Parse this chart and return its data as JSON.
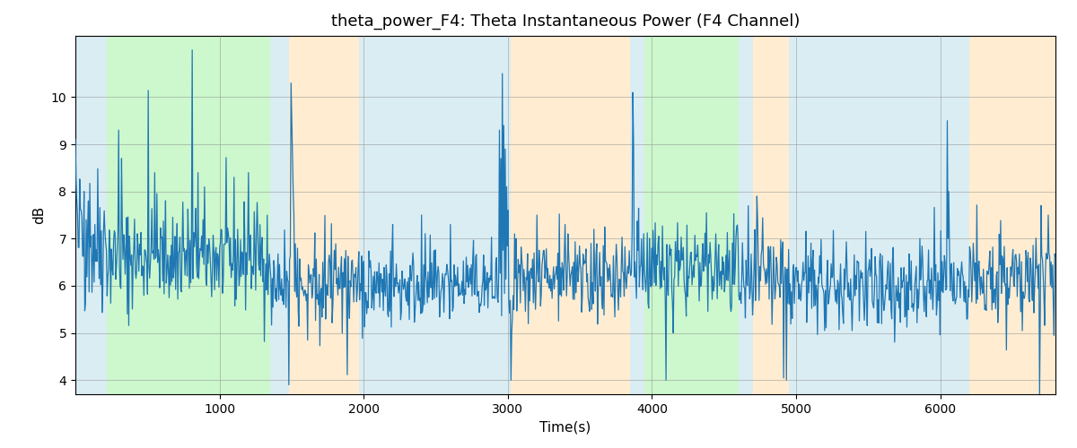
{
  "title": "theta_power_F4: Theta Instantaneous Power (F4 Channel)",
  "xlabel": "Time(s)",
  "ylabel": "dB",
  "ylim": [
    3.7,
    11.3
  ],
  "xlim": [
    0,
    6800
  ],
  "yticks": [
    4,
    5,
    6,
    7,
    8,
    9,
    10
  ],
  "xticks": [
    1000,
    2000,
    3000,
    4000,
    5000,
    6000
  ],
  "background_regions": [
    {
      "xmin": 0,
      "xmax": 220,
      "color": "#add8e6",
      "alpha": 0.45
    },
    {
      "xmin": 220,
      "xmax": 600,
      "color": "#90ee90",
      "alpha": 0.45
    },
    {
      "xmin": 600,
      "xmax": 1350,
      "color": "#90ee90",
      "alpha": 0.45
    },
    {
      "xmin": 1350,
      "xmax": 1480,
      "color": "#add8e6",
      "alpha": 0.45
    },
    {
      "xmin": 1480,
      "xmax": 1970,
      "color": "#ffd59a",
      "alpha": 0.45
    },
    {
      "xmin": 1970,
      "xmax": 3020,
      "color": "#add8e6",
      "alpha": 0.45
    },
    {
      "xmin": 3020,
      "xmax": 3850,
      "color": "#ffd59a",
      "alpha": 0.45
    },
    {
      "xmin": 3850,
      "xmax": 3950,
      "color": "#add8e6",
      "alpha": 0.45
    },
    {
      "xmin": 3950,
      "xmax": 4600,
      "color": "#90ee90",
      "alpha": 0.45
    },
    {
      "xmin": 4600,
      "xmax": 4700,
      "color": "#add8e6",
      "alpha": 0.45
    },
    {
      "xmin": 4700,
      "xmax": 4950,
      "color": "#ffd59a",
      "alpha": 0.45
    },
    {
      "xmin": 4950,
      "xmax": 6200,
      "color": "#add8e6",
      "alpha": 0.45
    },
    {
      "xmin": 6200,
      "xmax": 6800,
      "color": "#ffd59a",
      "alpha": 0.45
    }
  ],
  "line_color": "#1f77b4",
  "line_width": 0.9,
  "seed": 42,
  "figsize": [
    12.0,
    5.0
  ],
  "dpi": 100
}
